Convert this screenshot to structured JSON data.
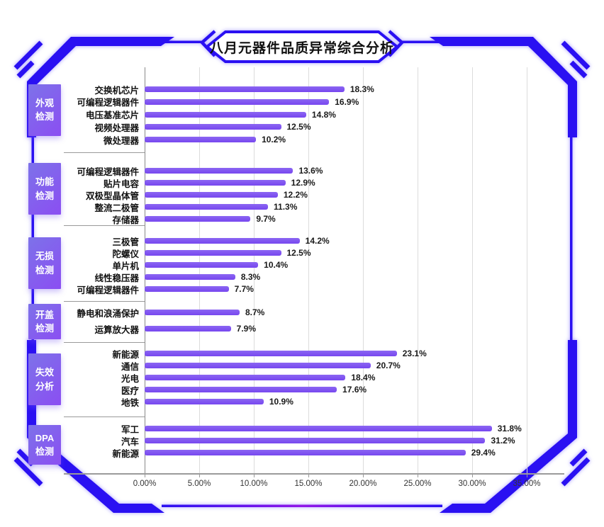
{
  "title": "八月元器件品质异常综合分析",
  "colors": {
    "frame": "#2A10F2",
    "frame_gradient_mid": "#9117E8",
    "bar_top": "#8B66F2",
    "bar_bottom": "#7747EF",
    "category_box_from": "#7D72E9",
    "category_box_to": "#8B4EF2",
    "axis": "#9A9A9A",
    "grid": "#DCDCDC"
  },
  "chart_data": {
    "type": "bar",
    "orientation": "horizontal",
    "title": "八月元器件品质异常综合分析",
    "unit": "%",
    "x_range": [
      0,
      35
    ],
    "grid": true,
    "x_ticks": [
      "0.00%",
      "5.00%",
      "10.00%",
      "15.00%",
      "20.00%",
      "25.00%",
      "30.00%",
      "35.00%"
    ],
    "groups": [
      {
        "category": "外观\n检测",
        "items": [
          {
            "label": "交换机芯片",
            "value": 18.3,
            "value_label": "18.3%"
          },
          {
            "label": "可编程逻辑器件",
            "value": 16.9,
            "value_label": "16.9%"
          },
          {
            "label": "电压基准芯片",
            "value": 14.8,
            "value_label": "14.8%"
          },
          {
            "label": "视频处理器",
            "value": 12.5,
            "value_label": "12.5%"
          },
          {
            "label": "微处理器",
            "value": 10.2,
            "value_label": "10.2%"
          }
        ]
      },
      {
        "category": "功能\n检测",
        "items": [
          {
            "label": "可编程逻辑器件",
            "value": 13.6,
            "value_label": "13.6%"
          },
          {
            "label": "贴片电容",
            "value": 12.9,
            "value_label": "12.9%"
          },
          {
            "label": "双极型晶体管",
            "value": 12.2,
            "value_label": "12.2%"
          },
          {
            "label": "整流二极管",
            "value": 11.3,
            "value_label": "11.3%"
          },
          {
            "label": "存储器",
            "value": 9.7,
            "value_label": "9.7%"
          }
        ]
      },
      {
        "category": "无损\n检测",
        "items": [
          {
            "label": "三极管",
            "value": 14.2,
            "value_label": "14.2%"
          },
          {
            "label": "陀螺仪",
            "value": 12.5,
            "value_label": "12.5%"
          },
          {
            "label": "单片机",
            "value": 10.4,
            "value_label": "10.4%"
          },
          {
            "label": "线性稳压器",
            "value": 8.3,
            "value_label": "8.3%"
          },
          {
            "label": "可编程逻辑器件",
            "value": 7.7,
            "value_label": "7.7%"
          }
        ]
      },
      {
        "category": "开盖\n检测",
        "items": [
          {
            "label": "静电和浪涌保护",
            "value": 8.7,
            "value_label": "8.7%"
          },
          {
            "label": "运算放大器",
            "value": 7.9,
            "value_label": "7.9%"
          }
        ]
      },
      {
        "category": "失效\n分析",
        "items": [
          {
            "label": "新能源",
            "value": 23.1,
            "value_label": "23.1%"
          },
          {
            "label": "通信",
            "value": 20.7,
            "value_label": "20.7%"
          },
          {
            "label": "光电",
            "value": 18.4,
            "value_label": "18.4%"
          },
          {
            "label": "医疗",
            "value": 17.6,
            "value_label": "17.6%"
          },
          {
            "label": "地铁",
            "value": 10.9,
            "value_label": "10.9%"
          }
        ]
      },
      {
        "category": "DPA\n检测",
        "items": [
          {
            "label": "军工",
            "value": 31.8,
            "value_label": "31.8%"
          },
          {
            "label": "汽车",
            "value": 31.2,
            "value_label": "31.2%"
          },
          {
            "label": "新能源",
            "value": 29.4,
            "value_label": "29.4%"
          }
        ]
      }
    ]
  }
}
